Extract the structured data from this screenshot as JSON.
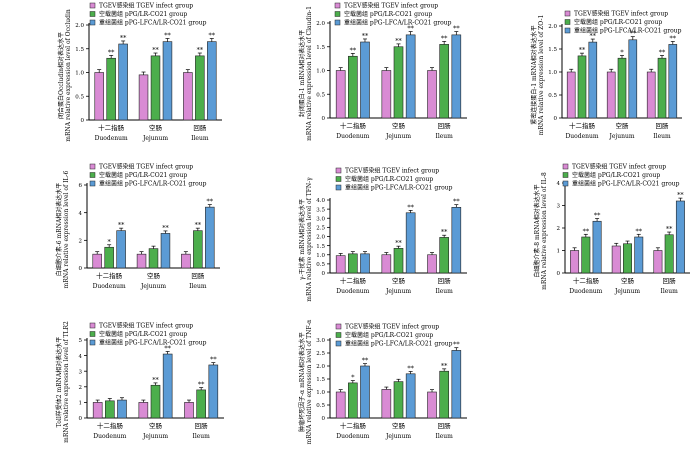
{
  "legend_labels": [
    "TGEV感染组 TGEV infect group",
    "空载菌组 pPG/LR-CO21 group",
    "重组菌组 pPG-LFCA/LR-CO21 group"
  ],
  "series_colors": [
    "#d98bd4",
    "#4cae4c",
    "#5b9bd5"
  ],
  "chart_data": [
    {
      "type": "bar",
      "panel": "Occludin",
      "ylabel": [
        "闭合蛋白Occludin相对表达水平",
        "mRNA relative expression level of Occludin"
      ],
      "categories": [
        [
          "十二指肠",
          "Duodenum"
        ],
        [
          "空肠",
          "Jejunum"
        ],
        [
          "回肠",
          "Ileum"
        ]
      ],
      "ylim": [
        0,
        2
      ],
      "yticks": [
        "0",
        "0.5",
        "1.0",
        "1.5",
        "2.0"
      ],
      "series": [
        {
          "name": "TGEV感染组 TGEV infect group",
          "values": [
            1.0,
            0.95,
            1.0
          ],
          "marks": [
            "",
            "",
            ""
          ]
        },
        {
          "name": "空载菌组 pPG/LR-CO21 group",
          "values": [
            1.3,
            1.35,
            1.35
          ],
          "marks": [
            "**",
            "**",
            "**"
          ]
        },
        {
          "name": "重组菌组 pPG-LFCA/LR-CO21 group",
          "values": [
            1.6,
            1.65,
            1.65
          ],
          "marks": [
            "**",
            "**",
            "**"
          ]
        }
      ],
      "legend_position": "top-right",
      "grid": false
    },
    {
      "type": "bar",
      "panel": "Claudin-1",
      "ylabel": [
        "封闭蛋白-1 mRNA相对表达水平",
        "mRNA relative expression level of Claudin-1"
      ],
      "categories": [
        [
          "十二指肠",
          "Duodenum"
        ],
        [
          "空肠",
          "Jejunum"
        ],
        [
          "回肠",
          "Ileum"
        ]
      ],
      "ylim": [
        0,
        2
      ],
      "yticks": [
        "0",
        "0.5",
        "1.0",
        "1.5",
        "2.0"
      ],
      "series": [
        {
          "name": "TGEV感染组 TGEV infect group",
          "values": [
            1.0,
            1.0,
            1.0
          ],
          "marks": [
            "",
            "",
            ""
          ]
        },
        {
          "name": "空载菌组 pPG/LR-CO21 group",
          "values": [
            1.3,
            1.5,
            1.55
          ],
          "marks": [
            "**",
            "**",
            "**"
          ]
        },
        {
          "name": "重组菌组 pPG-LFCA/LR-CO21 group",
          "values": [
            1.6,
            1.75,
            1.75
          ],
          "marks": [
            "**",
            "**",
            "**"
          ]
        }
      ],
      "legend_position": "top-right",
      "grid": false
    },
    {
      "type": "bar",
      "panel": "ZO-1",
      "ylabel": [
        "紧密连接蛋白-1 mRNA相对表达水平",
        "mRNA relative expression level of ZO-1"
      ],
      "categories": [
        [
          "十二指肠",
          "Duodenum"
        ],
        [
          "空肠",
          "Jejunum"
        ],
        [
          "回肠",
          "Ileum"
        ]
      ],
      "ylim": [
        0,
        2
      ],
      "yticks": [
        "0",
        "0.5",
        "1.0",
        "1.5",
        "2.0"
      ],
      "series": [
        {
          "name": "TGEV感染组 TGEV infect group",
          "values": [
            1.0,
            1.0,
            1.0
          ],
          "marks": [
            "",
            "",
            ""
          ]
        },
        {
          "name": "空载菌组 pPG/LR-CO21 group",
          "values": [
            1.35,
            1.3,
            1.3
          ],
          "marks": [
            "**",
            "*",
            "**"
          ]
        },
        {
          "name": "重组菌组 pPG-LFCA/LR-CO21 group",
          "values": [
            1.65,
            1.7,
            1.6
          ],
          "marks": [
            "**",
            "**",
            "**"
          ]
        }
      ],
      "legend_position": "top-right",
      "grid": false
    },
    {
      "type": "bar",
      "panel": "IL-6",
      "ylabel": [
        "白细胞介素-6 mRNA相对表达水平",
        "mRNA relative expression level of IL-6"
      ],
      "categories": [
        [
          "十二指肠",
          "Duodenum"
        ],
        [
          "空肠",
          "Jejunum"
        ],
        [
          "回肠",
          "Ileum"
        ]
      ],
      "ylim": [
        0,
        6
      ],
      "yticks": [
        "0",
        "2",
        "4",
        "6"
      ],
      "series": [
        {
          "name": "TGEV感染组 TGEV infect group",
          "values": [
            1.0,
            1.0,
            1.0
          ],
          "marks": [
            "",
            "",
            ""
          ]
        },
        {
          "name": "空载菌组 pPG/LR-CO21 group",
          "values": [
            1.5,
            1.4,
            2.7
          ],
          "marks": [
            "*",
            "",
            "**"
          ]
        },
        {
          "name": "重组菌组 pPG-LFCA/LR-CO21 group",
          "values": [
            2.7,
            2.5,
            4.4
          ],
          "marks": [
            "**",
            "**",
            "**"
          ]
        }
      ],
      "legend_position": "top-right",
      "grid": false
    },
    {
      "type": "bar",
      "panel": "TFN-γ",
      "ylabel": [
        "γ-干扰素 mRNA相对表达水平",
        "mRNA relative expression level of TFN-γ"
      ],
      "categories": [
        [
          "十二指肠",
          "Duodenum"
        ],
        [
          "空肠",
          "Jejunum"
        ],
        [
          "回肠",
          "Ileum"
        ]
      ],
      "ylim": [
        0,
        4
      ],
      "yticks": [
        "0",
        "0.5",
        "1.0",
        "1.5",
        "2.0",
        "2.5",
        "3.0",
        "3.5",
        "4.0"
      ],
      "series": [
        {
          "name": "TGEV感染组 TGEV infect group",
          "values": [
            0.95,
            1.0,
            1.0
          ],
          "marks": [
            "",
            "",
            ""
          ]
        },
        {
          "name": "空载菌组 pPG/LR-CO21 group",
          "values": [
            1.05,
            1.35,
            1.95
          ],
          "marks": [
            "",
            "**",
            "**"
          ]
        },
        {
          "name": "重组菌组 pPG-LFCA/LR-CO21 group",
          "values": [
            1.05,
            3.3,
            3.6
          ],
          "marks": [
            "",
            "**",
            "**"
          ]
        }
      ],
      "legend_position": "top-right",
      "grid": false
    },
    {
      "type": "bar",
      "panel": "IL-8",
      "ylabel": [
        "白细胞介素-8 mRNA相对表达水平",
        "mRNA relative expression level of IL-8"
      ],
      "categories": [
        [
          "十二指肠",
          "Duodenum"
        ],
        [
          "空肠",
          "Jejunum"
        ],
        [
          "回肠",
          "Ileum"
        ]
      ],
      "ylim": [
        0,
        4
      ],
      "yticks": [
        "0",
        "1",
        "2",
        "3",
        "4"
      ],
      "series": [
        {
          "name": "TGEV感染组 TGEV infect group",
          "values": [
            1.0,
            1.2,
            1.0
          ],
          "marks": [
            "",
            "",
            ""
          ]
        },
        {
          "name": "空载菌组 pPG/LR-CO21 group",
          "values": [
            1.6,
            1.3,
            1.7
          ],
          "marks": [
            "**",
            "",
            "**"
          ]
        },
        {
          "name": "重组菌组 pPG-LFCA/LR-CO21 group",
          "values": [
            2.3,
            1.6,
            3.2
          ],
          "marks": [
            "**",
            "**",
            "**"
          ]
        }
      ],
      "legend_position": "top-right",
      "grid": false
    },
    {
      "type": "bar",
      "panel": "TLR2",
      "ylabel": [
        "Toll样受体2 mRNA相对表达水平",
        "mRNA relative expression level of TLR2"
      ],
      "categories": [
        [
          "十二指肠",
          "Duodenum"
        ],
        [
          "空肠",
          "Jejunum"
        ],
        [
          "回肠",
          "Ileum"
        ]
      ],
      "ylim": [
        0,
        5
      ],
      "yticks": [
        "0",
        "1",
        "2",
        "3",
        "4",
        "5"
      ],
      "series": [
        {
          "name": "TGEV感染组 TGEV infect group",
          "values": [
            1.0,
            1.0,
            1.0
          ],
          "marks": [
            "",
            "",
            ""
          ]
        },
        {
          "name": "空载菌组 pPG/LR-CO21 group",
          "values": [
            1.1,
            2.1,
            1.8
          ],
          "marks": [
            "",
            "**",
            "**"
          ]
        },
        {
          "name": "重组菌组 pPG-LFCA/LR-CO21 group",
          "values": [
            1.15,
            4.1,
            3.4
          ],
          "marks": [
            "",
            "**",
            "**"
          ]
        }
      ],
      "legend_position": "top-right",
      "grid": false
    },
    {
      "type": "bar",
      "panel": "TNF-α",
      "ylabel": [
        "肿瘤坏死因子-α mRNA相对表达水平",
        "mRNA relative expression level of TNF-α"
      ],
      "categories": [
        [
          "十二指肠",
          "Duodenum"
        ],
        [
          "空肠",
          "Jejunum"
        ],
        [
          "回肠",
          "Ileum"
        ]
      ],
      "ylim": [
        0,
        3
      ],
      "yticks": [
        "0",
        "0.5",
        "1.0",
        "1.5",
        "2.0",
        "2.5",
        "3.0"
      ],
      "series": [
        {
          "name": "TGEV感染组 TGEV infect group",
          "values": [
            1.0,
            1.1,
            1.0
          ],
          "marks": [
            "",
            "",
            ""
          ]
        },
        {
          "name": "空载菌组 pPG/LR-CO21 group",
          "values": [
            1.35,
            1.4,
            1.8
          ],
          "marks": [
            "*",
            "",
            "**"
          ]
        },
        {
          "name": "重组菌组 pPG-LFCA/LR-CO21 group",
          "values": [
            2.0,
            1.7,
            2.6
          ],
          "marks": [
            "**",
            "**",
            "**"
          ]
        }
      ],
      "legend_position": "top-right",
      "grid": false
    }
  ]
}
